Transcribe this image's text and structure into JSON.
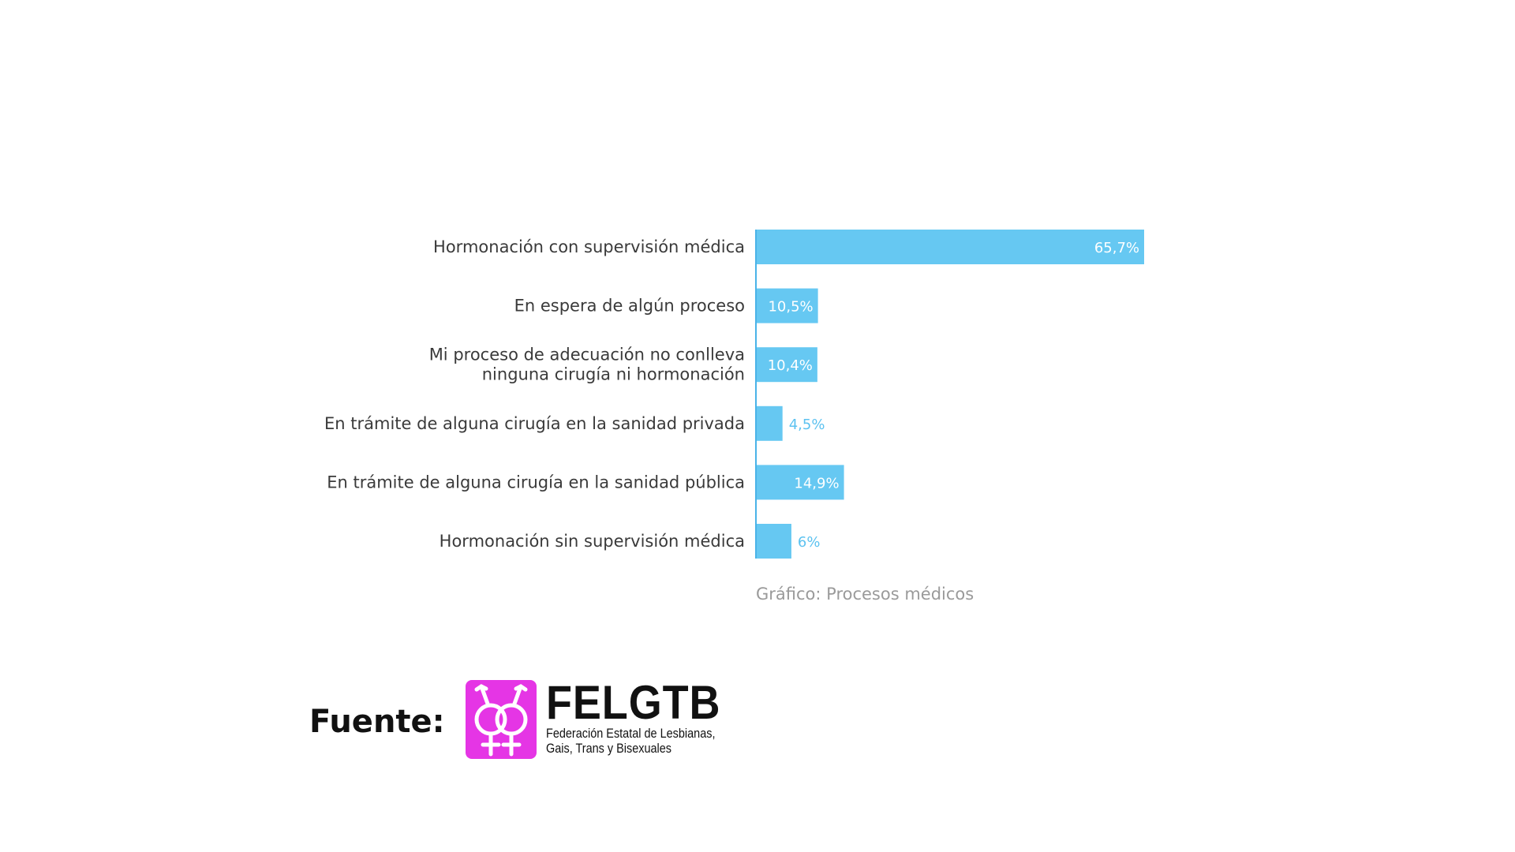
{
  "chart_data": {
    "type": "bar",
    "orientation": "horizontal",
    "categories": [
      [
        "Hormonación con supervisión médica"
      ],
      [
        "En espera de algún proceso"
      ],
      [
        "Mi proceso de adecuación no conlleva",
        "ninguna cirugía ni hormonación"
      ],
      [
        "En trámite de alguna cirugía en la sanidad privada"
      ],
      [
        "En trámite de alguna cirugía en la sanidad pública"
      ],
      [
        "Hormonación sin supervisión médica"
      ]
    ],
    "values": [
      65.7,
      10.5,
      10.4,
      4.5,
      14.9,
      6
    ],
    "value_labels": [
      "65,7%",
      "10,5%",
      "10,4%",
      "4,5%",
      "14,9%",
      "6%"
    ],
    "caption": "Gráfico: Procesos médicos",
    "xlim": [
      0,
      100
    ],
    "grid": false,
    "legend": "none",
    "colors": {
      "bar": "#66c8f2",
      "axis": "#4ab3e8",
      "label_text": "#3a3a3a",
      "value_outside": "#5cc2f0",
      "caption_text": "#9a9a9a"
    }
  },
  "source": {
    "label": "Fuente:",
    "logo_name": "FELGTB",
    "logo_subtitle_line1": "Federación Estatal de Lesbianas,",
    "logo_subtitle_line2": "Gais, Trans y Bisexuales",
    "logo_color": "#e535e5",
    "logo_icon": "intertwined-gender-symbols-icon"
  }
}
